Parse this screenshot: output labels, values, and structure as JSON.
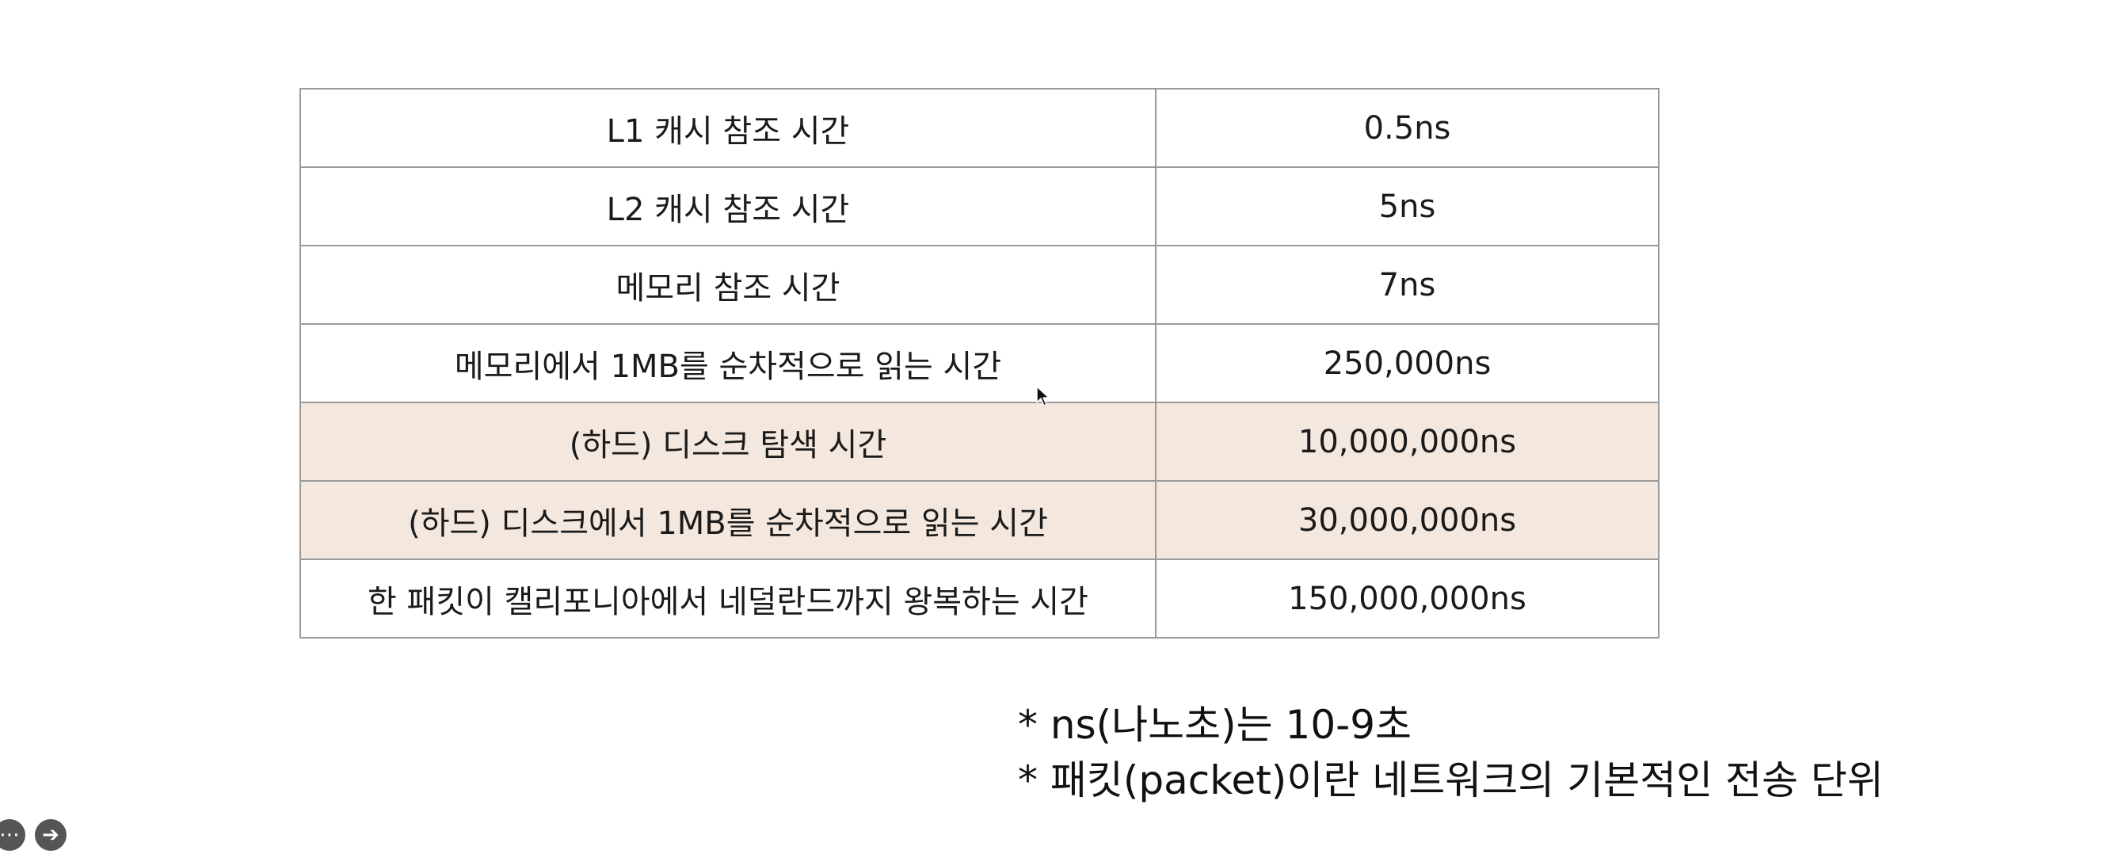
{
  "table": {
    "rows": [
      {
        "label": "L1 캐시 참조 시간",
        "value": "0.5ns",
        "highlight": false
      },
      {
        "label": "L2 캐시 참조 시간",
        "value": "5ns",
        "highlight": false
      },
      {
        "label": "메모리 참조 시간",
        "value": "7ns",
        "highlight": false
      },
      {
        "label": "메모리에서 1MB를 순차적으로 읽는 시간",
        "value": "250,000ns",
        "highlight": false
      },
      {
        "label": "(하드) 디스크 탐색 시간",
        "value": "10,000,000ns",
        "highlight": true
      },
      {
        "label": "(하드) 디스크에서 1MB를 순차적으로 읽는 시간",
        "value": "30,000,000ns",
        "highlight": true
      },
      {
        "label": "한 패킷이 캘리포니아에서 네덜란드까지 왕복하는 시간",
        "value": "150,000,000ns",
        "highlight": false
      }
    ],
    "highlight_color": "#f4e7dd"
  },
  "notes": [
    "* ns(나노초)는 10-9초",
    "* 패킷(packet)이란 네트워크의 기본적인 전송 단위"
  ],
  "controls": {
    "more_icon": "more-icon",
    "next_icon": "arrow-right-icon"
  }
}
